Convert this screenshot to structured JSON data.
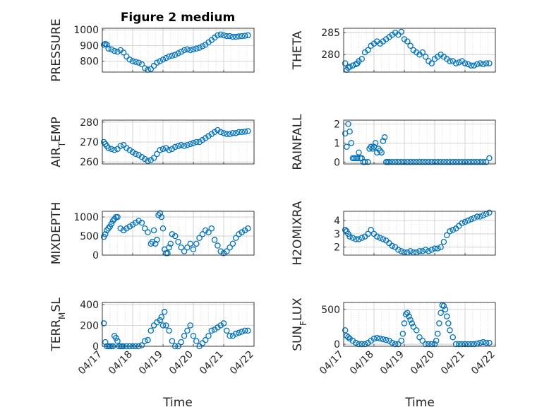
{
  "figure": {
    "title": "Figure 2 medium",
    "xlabel_left": "Time",
    "xlabel_right": "Time"
  },
  "colors": {
    "marker": "#0072BD",
    "axis": "#262626",
    "grid": "#c8c8c8"
  },
  "chart_data": [
    {
      "type": "scatter",
      "ylabel": "PRESSURE",
      "ylim": [
        730,
        1010
      ],
      "yticks": [
        800,
        900,
        1000
      ],
      "xlim": [
        "04/17",
        "04/22"
      ],
      "xticks": [
        "04/17",
        "04/18",
        "04/19",
        "04/20",
        "04/21",
        "04/22"
      ],
      "xticklabels_shown": false,
      "x": [
        0.05,
        0.1,
        0.15,
        0.2,
        0.3,
        0.4,
        0.5,
        0.6,
        0.7,
        0.8,
        0.9,
        1.0,
        1.1,
        1.2,
        1.3,
        1.4,
        1.5,
        1.6,
        1.7,
        1.8,
        1.9,
        2.0,
        2.1,
        2.2,
        2.3,
        2.4,
        2.5,
        2.6,
        2.7,
        2.8,
        2.9,
        3.0,
        3.1,
        3.2,
        3.3,
        3.4,
        3.5,
        3.6,
        3.7,
        3.8,
        3.9,
        4.0,
        4.1,
        4.2,
        4.3,
        4.4,
        4.5,
        4.6,
        4.7,
        4.8
      ],
      "y": [
        905,
        910,
        905,
        880,
        875,
        865,
        860,
        870,
        855,
        830,
        810,
        800,
        795,
        790,
        780,
        755,
        745,
        750,
        770,
        790,
        800,
        810,
        820,
        830,
        835,
        840,
        850,
        860,
        870,
        875,
        870,
        875,
        880,
        885,
        895,
        905,
        920,
        935,
        950,
        965,
        970,
        965,
        960,
        960,
        955,
        955,
        958,
        960,
        962,
        965
      ]
    },
    {
      "type": "scatter",
      "ylabel": "THETA",
      "ylim": [
        276,
        286
      ],
      "yticks": [
        280,
        285
      ],
      "xlim": [
        "04/17",
        "04/22"
      ],
      "xticks": [
        "04/17",
        "04/18",
        "04/19",
        "04/20",
        "04/21",
        "04/22"
      ],
      "xticklabels_shown": false,
      "x": [
        0.05,
        0.1,
        0.15,
        0.2,
        0.3,
        0.4,
        0.45,
        0.5,
        0.6,
        0.7,
        0.8,
        0.9,
        1.0,
        1.1,
        1.2,
        1.3,
        1.4,
        1.5,
        1.6,
        1.7,
        1.8,
        1.9,
        2.0,
        2.1,
        2.2,
        2.3,
        2.4,
        2.5,
        2.6,
        2.7,
        2.8,
        2.9,
        3.0,
        3.1,
        3.2,
        3.3,
        3.4,
        3.5,
        3.6,
        3.7,
        3.8,
        3.9,
        4.0,
        4.1,
        4.2,
        4.3,
        4.4,
        4.5,
        4.6,
        4.7,
        4.8
      ],
      "y": [
        278,
        276.5,
        277,
        277.2,
        277.5,
        277.8,
        278,
        278.5,
        279,
        280.5,
        281,
        282,
        282.5,
        283,
        282.5,
        283,
        283.5,
        284,
        284.5,
        285,
        284.5,
        285.2,
        283.5,
        283,
        282,
        281,
        280.5,
        280,
        280.5,
        279.5,
        278.5,
        278,
        279,
        279.5,
        280,
        279.5,
        279,
        278.5,
        278.5,
        278,
        278.2,
        278.5,
        278,
        277.8,
        277.5,
        277.5,
        277.8,
        278,
        277.8,
        278,
        278
      ]
    },
    {
      "type": "scatter",
      "ylabel": "AIR_TEMP",
      "ylim": [
        259,
        281
      ],
      "yticks": [
        260,
        270,
        280
      ],
      "xlim": [
        "04/17",
        "04/22"
      ],
      "xticks": [
        "04/17",
        "04/18",
        "04/19",
        "04/20",
        "04/21",
        "04/22"
      ],
      "xticklabels_shown": false,
      "x": [
        0.05,
        0.1,
        0.15,
        0.2,
        0.3,
        0.4,
        0.5,
        0.6,
        0.7,
        0.8,
        0.9,
        1.0,
        1.1,
        1.2,
        1.3,
        1.4,
        1.5,
        1.6,
        1.7,
        1.8,
        1.9,
        2.0,
        2.1,
        2.2,
        2.3,
        2.4,
        2.5,
        2.6,
        2.7,
        2.8,
        2.9,
        3.0,
        3.1,
        3.2,
        3.3,
        3.4,
        3.5,
        3.6,
        3.7,
        3.8,
        3.9,
        4.0,
        4.1,
        4.2,
        4.3,
        4.4,
        4.5,
        4.6,
        4.7,
        4.8
      ],
      "y": [
        270,
        269,
        268,
        267,
        266.5,
        266,
        266.5,
        268,
        268.5,
        267,
        266,
        265,
        264,
        263.5,
        262.5,
        261.5,
        260.5,
        261,
        262,
        264,
        266,
        266.5,
        267,
        266,
        266.5,
        267.5,
        268,
        268.5,
        268,
        268.5,
        269,
        269.5,
        270,
        270,
        271,
        272,
        273,
        274,
        275,
        276,
        275,
        274.5,
        274,
        274,
        274.5,
        274.5,
        275,
        275,
        275.2,
        275.5
      ]
    },
    {
      "type": "scatter",
      "ylabel": "RAINFALL",
      "ylim": [
        -0.1,
        2.2
      ],
      "yticks": [
        0,
        1,
        2
      ],
      "xlim": [
        "04/17",
        "04/22"
      ],
      "xticks": [
        "04/17",
        "04/18",
        "04/19",
        "04/20",
        "04/21",
        "04/22"
      ],
      "xticklabels_shown": false,
      "x": [
        0.05,
        0.1,
        0.15,
        0.2,
        0.25,
        0.3,
        0.35,
        0.4,
        0.45,
        0.5,
        0.55,
        0.6,
        0.65,
        0.7,
        0.8,
        0.85,
        0.9,
        0.95,
        1.0,
        1.05,
        1.1,
        1.15,
        1.2,
        1.25,
        1.3,
        1.35,
        1.4,
        1.45,
        1.5,
        1.6,
        1.7,
        1.8,
        1.9,
        2.0,
        2.1,
        2.2,
        2.3,
        2.4,
        2.5,
        2.6,
        2.7,
        2.8,
        2.9,
        3.0,
        3.1,
        3.2,
        3.3,
        3.4,
        3.5,
        3.6,
        3.7,
        3.8,
        3.9,
        4.0,
        4.1,
        4.2,
        4.3,
        4.4,
        4.5,
        4.6,
        4.7,
        4.8
      ],
      "y": [
        1.5,
        0.8,
        2.0,
        1.6,
        1.0,
        0.2,
        0.2,
        0.2,
        0.2,
        0.5,
        0.2,
        0.2,
        0,
        0,
        0,
        0.7,
        0.8,
        0.7,
        0.8,
        1.0,
        0.5,
        0.7,
        0.6,
        0.5,
        1.1,
        1.3,
        0,
        0,
        0,
        0,
        0,
        0,
        0,
        0,
        0,
        0,
        0,
        0,
        0,
        0,
        0,
        0,
        0,
        0,
        0,
        0,
        0,
        0,
        0,
        0,
        0,
        0,
        0,
        0,
        0,
        0,
        0,
        0,
        0,
        0,
        0,
        0.2
      ]
    },
    {
      "type": "scatter",
      "ylabel": "MIXDEPTH",
      "ylim": [
        0,
        1150
      ],
      "yticks": [
        0,
        500,
        1000
      ],
      "xlim": [
        "04/17",
        "04/22"
      ],
      "xticks": [
        "04/17",
        "04/18",
        "04/19",
        "04/20",
        "04/21",
        "04/22"
      ],
      "xticklabels_shown": false,
      "x": [
        0.05,
        0.1,
        0.15,
        0.2,
        0.25,
        0.3,
        0.35,
        0.4,
        0.45,
        0.5,
        0.6,
        0.7,
        0.8,
        0.9,
        1.0,
        1.1,
        1.2,
        1.3,
        1.4,
        1.5,
        1.6,
        1.65,
        1.7,
        1.75,
        1.8,
        1.85,
        1.9,
        1.95,
        2.0,
        2.05,
        2.1,
        2.15,
        2.2,
        2.25,
        2.3,
        2.4,
        2.5,
        2.6,
        2.7,
        2.8,
        2.9,
        3.0,
        3.1,
        3.2,
        3.3,
        3.4,
        3.5,
        3.6,
        3.7,
        3.8,
        3.9,
        4.0,
        4.1,
        4.2,
        4.3,
        4.4,
        4.5,
        4.6,
        4.7,
        4.8
      ],
      "y": [
        480,
        550,
        650,
        700,
        750,
        820,
        900,
        950,
        1000,
        1000,
        700,
        650,
        700,
        750,
        800,
        850,
        900,
        850,
        700,
        600,
        300,
        350,
        650,
        300,
        400,
        1050,
        1100,
        1000,
        700,
        150,
        50,
        50,
        200,
        300,
        550,
        500,
        350,
        200,
        100,
        200,
        300,
        150,
        300,
        450,
        550,
        650,
        600,
        700,
        400,
        250,
        100,
        50,
        100,
        200,
        300,
        450,
        550,
        600,
        650,
        700
      ]
    },
    {
      "type": "scatter",
      "ylabel": "H2OMIXRA",
      "ylim": [
        1.4,
        4.7
      ],
      "yticks": [
        2,
        3,
        4
      ],
      "xlim": [
        "04/17",
        "04/22"
      ],
      "xticks": [
        "04/17",
        "04/18",
        "04/19",
        "04/20",
        "04/21",
        "04/22"
      ],
      "xticklabels_shown": false,
      "x": [
        0.05,
        0.1,
        0.15,
        0.2,
        0.3,
        0.4,
        0.5,
        0.6,
        0.7,
        0.8,
        0.9,
        1.0,
        1.1,
        1.2,
        1.3,
        1.4,
        1.5,
        1.6,
        1.7,
        1.8,
        1.9,
        2.0,
        2.1,
        2.2,
        2.3,
        2.4,
        2.5,
        2.6,
        2.7,
        2.8,
        2.9,
        3.0,
        3.1,
        3.2,
        3.3,
        3.4,
        3.5,
        3.6,
        3.7,
        3.8,
        3.9,
        4.0,
        4.1,
        4.2,
        4.3,
        4.4,
        4.5,
        4.6,
        4.7,
        4.8
      ],
      "y": [
        3.3,
        3.2,
        3.0,
        2.8,
        2.7,
        2.6,
        2.6,
        2.7,
        2.8,
        3.0,
        3.3,
        3.0,
        2.8,
        2.7,
        2.6,
        2.5,
        2.3,
        2.1,
        2.0,
        1.8,
        1.7,
        1.6,
        1.6,
        1.7,
        1.6,
        1.6,
        1.7,
        1.7,
        1.8,
        1.7,
        1.8,
        1.9,
        1.9,
        2.0,
        2.4,
        2.9,
        3.2,
        3.3,
        3.4,
        3.6,
        3.8,
        3.9,
        4.0,
        4.1,
        4.2,
        4.3,
        4.3,
        4.4,
        4.5,
        4.6
      ]
    },
    {
      "type": "scatter",
      "ylabel": "TERR_MSL",
      "ylim": [
        0,
        420
      ],
      "yticks": [
        0,
        200,
        400
      ],
      "xlim": [
        "04/17",
        "04/22"
      ],
      "xticks": [
        "04/17",
        "04/18",
        "04/19",
        "04/20",
        "04/21",
        "04/22"
      ],
      "xticklabels": [
        "04/17",
        "04/18",
        "04/19",
        "04/20",
        "04/21",
        "04/22"
      ],
      "x": [
        0.05,
        0.1,
        0.15,
        0.2,
        0.25,
        0.3,
        0.35,
        0.4,
        0.45,
        0.5,
        0.55,
        0.6,
        0.65,
        0.7,
        0.8,
        0.9,
        1.0,
        1.1,
        1.2,
        1.3,
        1.4,
        1.5,
        1.6,
        1.7,
        1.8,
        1.9,
        1.95,
        2.0,
        2.05,
        2.1,
        2.2,
        2.3,
        2.4,
        2.5,
        2.6,
        2.7,
        2.8,
        2.9,
        3.0,
        3.1,
        3.2,
        3.3,
        3.4,
        3.5,
        3.6,
        3.7,
        3.8,
        3.9,
        4.0,
        4.1,
        4.2,
        4.3,
        4.4,
        4.5,
        4.6,
        4.7,
        4.8
      ],
      "y": [
        220,
        40,
        0,
        0,
        0,
        0,
        0,
        100,
        80,
        50,
        0,
        0,
        0,
        0,
        0,
        0,
        0,
        0,
        0,
        10,
        50,
        60,
        150,
        200,
        230,
        250,
        280,
        200,
        330,
        200,
        150,
        50,
        0,
        0,
        40,
        100,
        150,
        200,
        100,
        50,
        0,
        30,
        60,
        100,
        150,
        160,
        180,
        200,
        220,
        150,
        100,
        100,
        120,
        130,
        140,
        150,
        150
      ]
    },
    {
      "type": "scatter",
      "ylabel": "SUN_FLUX",
      "ylim": [
        -30,
        600
      ],
      "yticks": [
        0,
        500
      ],
      "xlim": [
        "04/17",
        "04/22"
      ],
      "xticks": [
        "04/17",
        "04/18",
        "04/19",
        "04/20",
        "04/21",
        "04/22"
      ],
      "xticklabels": [
        "04/17",
        "04/18",
        "04/19",
        "04/20",
        "04/21",
        "04/22"
      ],
      "x": [
        0.05,
        0.1,
        0.15,
        0.2,
        0.3,
        0.4,
        0.5,
        0.6,
        0.7,
        0.8,
        0.9,
        1.0,
        1.1,
        1.2,
        1.3,
        1.4,
        1.5,
        1.6,
        1.7,
        1.8,
        1.9,
        1.95,
        2.0,
        2.05,
        2.1,
        2.15,
        2.2,
        2.25,
        2.3,
        2.4,
        2.5,
        2.6,
        2.7,
        2.8,
        2.9,
        3.0,
        3.05,
        3.1,
        3.15,
        3.2,
        3.25,
        3.3,
        3.35,
        3.4,
        3.45,
        3.5,
        3.6,
        3.7,
        3.8,
        3.9,
        4.0,
        4.1,
        4.2,
        4.3,
        4.4,
        4.5,
        4.6,
        4.7,
        4.8
      ],
      "y": [
        200,
        120,
        100,
        80,
        50,
        20,
        0,
        0,
        0,
        20,
        50,
        80,
        90,
        80,
        70,
        60,
        50,
        20,
        0,
        0,
        50,
        150,
        300,
        430,
        450,
        400,
        350,
        300,
        250,
        200,
        100,
        50,
        0,
        0,
        0,
        0,
        50,
        150,
        300,
        450,
        560,
        550,
        500,
        400,
        300,
        200,
        100,
        0,
        0,
        0,
        0,
        0,
        0,
        0,
        10,
        20,
        30,
        20,
        20
      ]
    }
  ]
}
